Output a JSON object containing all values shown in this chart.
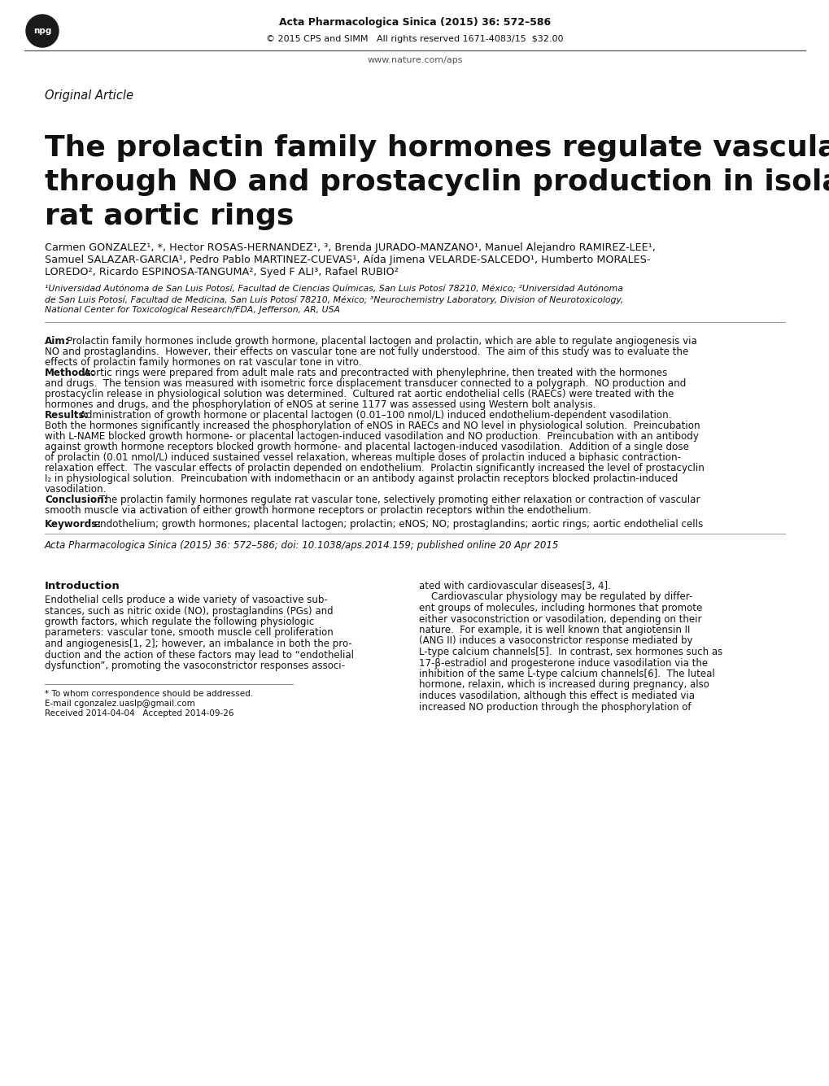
{
  "background_color": "#ffffff",
  "header_journal": "Acta Pharmacologica Sinica",
  "header_volume": " (2015) 36: 572–586",
  "header_copyright": "© 2015 CPS and SIMM   All rights reserved 1671-4083/15  $32.00",
  "header_website": "www.nature.com/aps",
  "article_type": "Original Article",
  "title_line1": "The prolactin family hormones regulate vascular tone",
  "title_line2": "through NO and prostacyclin production in isolated",
  "title_line3": "rat aortic rings",
  "authors_line1": "Carmen GONZALEZ¹, *, Hector ROSAS-HERNANDEZ¹, ³, Brenda JURADO-MANZANO¹, Manuel Alejandro RAMIREZ-LEE¹,",
  "authors_line2": "Samuel SALAZAR-GARCIA¹, Pedro Pablo MARTINEZ-CUEVAS¹, Aída Jimena VELARDE-SALCEDO¹, Humberto MORALES-",
  "authors_line3": "LOREDO², Ricardo ESPINOSA-TANGUMA², Syed F ALI³, Rafael RUBIO²",
  "affil1": "¹Universidad Autónoma de San Luis Potosí, Facultad de Ciencias Químicas, San Luis Potosí 78210, México; ²Universidad Autónoma",
  "affil2": "de San Luis Potosí, Facultad de Medicina, San Luis Potosí 78210, México; ³Neurochemistry Laboratory, Division of Neurotoxicology,",
  "affil3": "National Center for Toxicological Research/FDA, Jefferson, AR, USA",
  "aim_label": "Aim:",
  "aim_text": " Prolactin family hormones include growth hormone, placental lactogen and prolactin, which are able to regulate angiogenesis via NO and prostaglandins.  However, their effects on vascular tone are not fully understood.  The aim of this study was to evaluate the effects of prolactin family hormones on rat vascular tone in vitro.",
  "aim_lines": [
    "Prolactin family hormones include growth hormone, placental lactogen and prolactin, which are able to regulate angiogenesis via",
    "NO and prostaglandins.  However, their effects on vascular tone are not fully understood.  The aim of this study was to evaluate the",
    "effects of prolactin family hormones on rat vascular tone in vitro."
  ],
  "methods_label": "Methods:",
  "methods_lines": [
    "Aortic rings were prepared from adult male rats and precontracted with phenylephrine, then treated with the hormones",
    "and drugs.  The tension was measured with isometric force displacement transducer connected to a polygraph.  NO production and",
    "prostacyclin release in physiological solution was determined.  Cultured rat aortic endothelial cells (RAECs) were treated with the",
    "hormones and drugs, and the phosphorylation of eNOS at serine 1177 was assessed using Western bolt analysis."
  ],
  "results_label": "Results:",
  "results_lines": [
    "Administration of growth hormone or placental lactogen (0.01–100 nmol/L) induced endothelium-dependent vasodilation.",
    "Both the hormones significantly increased the phosphorylation of eNOS in RAECs and NO level in physiological solution.  Preincubation",
    "with L-NAME blocked growth hormone- or placental lactogen-induced vasodilation and NO production.  Preincubation with an antibody",
    "against growth hormone receptors blocked growth hormone- and placental lactogen-induced vasodilation.  Addition of a single dose",
    "of prolactin (0.01 nmol/L) induced sustained vessel relaxation, whereas multiple doses of prolactin induced a biphasic contraction-",
    "relaxation effect.  The vascular effects of prolactin depended on endothelium.  Prolactin significantly increased the level of prostacyclin",
    "I₂ in physiological solution.  Preincubation with indomethacin or an antibody against prolactin receptors blocked prolactin-induced",
    "vasodilation."
  ],
  "conclusion_label": "Conclusion:",
  "conclusion_lines": [
    "The prolactin family hormones regulate rat vascular tone, selectively promoting either relaxation or contraction of vascular",
    "smooth muscle via activation of either growth hormone receptors or prolactin receptors within the endothelium."
  ],
  "keywords_label": "Keywords:",
  "keywords_text": " endothelium; growth hormones; placental lactogen; prolactin; eNOS; NO; prostaglandins; aortic rings; aortic endothelial cells",
  "citation": "Acta Pharmacologica Sinica (2015) 36: 572–586; doi: 10.1038/aps.2014.159; published online 20 Apr 2015",
  "intro_heading": "Introduction",
  "intro_col1_lines": [
    "Endothelial cells produce a wide variety of vasoactive sub-",
    "stances, such as nitric oxide (NO), prostaglandins (PGs) and",
    "growth factors, which regulate the following physiologic",
    "parameters: vascular tone, smooth muscle cell proliferation",
    "and angiogenesis[1, 2]; however, an imbalance in both the pro-",
    "duction and the action of these factors may lead to “endothelial",
    "dysfunction”, promoting the vasoconstrictor responses associ-"
  ],
  "intro_col2_line1": "ated with cardiovascular diseases[3, 4].",
  "intro_col2_lines": [
    "ated with cardiovascular diseases[3, 4].",
    "    Cardiovascular physiology may be regulated by differ-",
    "ent groups of molecules, including hormones that promote",
    "either vasoconstriction or vasodilation, depending on their",
    "nature.  For example, it is well known that angiotensin II",
    "(ANG II) induces a vasoconstrictor response mediated by",
    "L-type calcium channels[5].  In contrast, sex hormones such as",
    "17-β-estradiol and progesterone induce vasodilation via the",
    "inhibition of the same L-type calcium channels[6].  The luteal",
    "hormone, relaxin, which is increased during pregnancy, also",
    "induces vasodilation, although this effect is mediated via",
    "increased NO production through the phosphorylation of"
  ],
  "footnote_line": "* To whom correspondence should be addressed.",
  "footnote_email": "E-mail cgonzalez.uaslp@gmail.com",
  "footnote_received": "Received 2014-04-04   Accepted 2014-09-26"
}
